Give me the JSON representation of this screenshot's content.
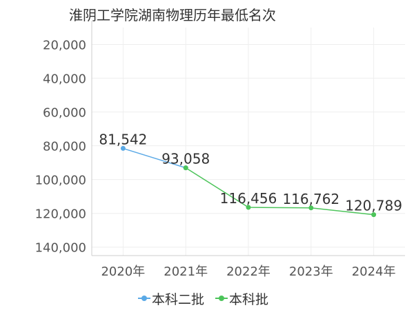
{
  "chart_data": {
    "type": "line",
    "title": "淮阴工学院湖南物理历年最低名次",
    "categories": [
      "2020年",
      "2021年",
      "2022年",
      "2023年",
      "2024年"
    ],
    "y_reversed": true,
    "ylim": [
      10000,
      145000
    ],
    "yticks": [
      20000,
      40000,
      60000,
      80000,
      100000,
      120000,
      140000
    ],
    "ytick_labels": [
      "20,000",
      "40,000",
      "60,000",
      "80,000",
      "100,000",
      "120,000",
      "140,000"
    ],
    "grid": true,
    "legend_position": "bottom",
    "series": [
      {
        "name": "本科二批",
        "color": "#5aa9e6",
        "values": [
          81542,
          93058,
          null,
          null,
          null
        ],
        "labels": [
          "81,542",
          null,
          null,
          null,
          null
        ]
      },
      {
        "name": "本科批",
        "color": "#4cc45a",
        "values": [
          null,
          93058,
          116456,
          116762,
          120789
        ],
        "labels": [
          null,
          "93,058",
          "116,456",
          "116,762",
          "120,789"
        ]
      }
    ]
  }
}
